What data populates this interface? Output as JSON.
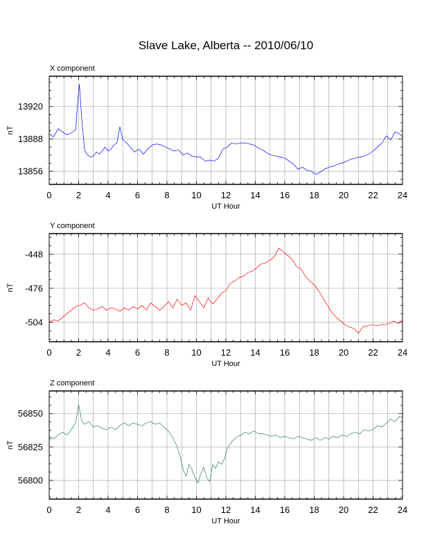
{
  "title": "Slave Lake, Alberta -- 2010/06/10",
  "chart_data": [
    {
      "type": "line",
      "component_label": "X component",
      "xlabel": "UT Hour",
      "ylabel": "nT",
      "color": "#0000ff",
      "xlim": [
        0,
        24
      ],
      "ylim": [
        13843,
        13950
      ],
      "x_ticks": [
        0,
        2,
        4,
        6,
        8,
        10,
        12,
        14,
        16,
        18,
        20,
        22,
        24
      ],
      "y_ticks": [
        13856,
        13888,
        13920
      ],
      "grid": true,
      "series": [
        {
          "x": [
            0,
            0.3,
            0.6,
            0.9,
            1.2,
            1.5,
            1.8,
            1.95,
            2.05,
            2.2,
            2.4,
            2.6,
            2.8,
            3.0,
            3.2,
            3.4,
            3.6,
            3.8,
            4.0,
            4.2,
            4.4,
            4.6,
            4.8,
            5.0,
            5.2,
            5.5,
            5.8,
            6.1,
            6.4,
            6.7,
            7.0,
            7.3,
            7.6,
            7.9,
            8.2,
            8.5,
            8.8,
            9.1,
            9.4,
            9.7,
            10.0,
            10.3,
            10.6,
            10.9,
            11.2,
            11.5,
            11.8,
            12.1,
            12.4,
            12.7,
            13.0,
            13.3,
            13.6,
            13.9,
            14.2,
            14.5,
            14.8,
            15.1,
            15.4,
            15.7,
            16.0,
            16.3,
            16.6,
            16.9,
            17.2,
            17.5,
            17.8,
            18.1,
            18.4,
            18.7,
            19.0,
            19.3,
            19.6,
            19.9,
            20.2,
            20.5,
            20.8,
            21.1,
            21.4,
            21.7,
            22.0,
            22.3,
            22.6,
            22.9,
            23.2,
            23.5,
            23.8,
            24
          ],
          "y": [
            13893,
            13890,
            13898,
            13895,
            13892,
            13894,
            13897,
            13928,
            13942,
            13910,
            13877,
            13872,
            13870,
            13871,
            13875,
            13873,
            13876,
            13880,
            13876,
            13878,
            13882,
            13884,
            13900,
            13887,
            13885,
            13880,
            13875,
            13878,
            13873,
            13878,
            13882,
            13883,
            13882,
            13880,
            13878,
            13876,
            13877,
            13872,
            13874,
            13871,
            13870,
            13870,
            13866,
            13867,
            13866,
            13869,
            13878,
            13880,
            13884,
            13883,
            13884,
            13884,
            13883,
            13882,
            13879,
            13877,
            13874,
            13872,
            13871,
            13870,
            13869,
            13866,
            13863,
            13858,
            13860,
            13857,
            13856,
            13853,
            13855,
            13858,
            13860,
            13861,
            13863,
            13864,
            13866,
            13868,
            13869,
            13870,
            13871,
            13873,
            13876,
            13880,
            13884,
            13891,
            13887,
            13895,
            13893,
            13890
          ]
        }
      ]
    },
    {
      "type": "line",
      "component_label": "Y component",
      "xlabel": "UT Hour",
      "ylabel": "nT",
      "color": "#ff0000",
      "xlim": [
        0,
        24
      ],
      "ylim": [
        -520,
        -431
      ],
      "x_ticks": [
        0,
        2,
        4,
        6,
        8,
        10,
        12,
        14,
        16,
        18,
        20,
        22,
        24
      ],
      "y_ticks": [
        -504,
        -476,
        -448
      ],
      "grid": true,
      "series": [
        {
          "x": [
            0,
            0.3,
            0.6,
            0.9,
            1.2,
            1.5,
            1.8,
            2.1,
            2.4,
            2.7,
            3.0,
            3.3,
            3.6,
            3.9,
            4.2,
            4.5,
            4.8,
            5.1,
            5.4,
            5.7,
            6.0,
            6.3,
            6.6,
            6.9,
            7.2,
            7.5,
            7.8,
            8.1,
            8.4,
            8.7,
            9.0,
            9.3,
            9.6,
            9.9,
            10.2,
            10.5,
            10.8,
            11.1,
            11.4,
            11.7,
            12.0,
            12.3,
            12.6,
            12.9,
            13.2,
            13.5,
            13.8,
            14.1,
            14.4,
            14.7,
            15.0,
            15.3,
            15.6,
            15.9,
            16.2,
            16.5,
            16.8,
            17.1,
            17.4,
            17.7,
            18.0,
            18.3,
            18.6,
            18.9,
            19.2,
            19.5,
            19.8,
            20.1,
            20.4,
            20.7,
            21.0,
            21.3,
            21.6,
            21.9,
            22.2,
            22.5,
            22.8,
            23.1,
            23.4,
            23.7,
            24
          ],
          "y": [
            -504,
            -502,
            -503,
            -500,
            -497,
            -494,
            -491,
            -490,
            -488,
            -492,
            -494,
            -493,
            -491,
            -494,
            -492,
            -493,
            -495,
            -492,
            -494,
            -491,
            -493,
            -490,
            -494,
            -488,
            -491,
            -494,
            -491,
            -487,
            -492,
            -485,
            -490,
            -488,
            -494,
            -482,
            -487,
            -492,
            -484,
            -489,
            -485,
            -480,
            -478,
            -472,
            -470,
            -467,
            -466,
            -463,
            -462,
            -459,
            -456,
            -455,
            -453,
            -450,
            -443,
            -446,
            -449,
            -452,
            -458,
            -460,
            -466,
            -470,
            -473,
            -478,
            -484,
            -490,
            -496,
            -500,
            -503,
            -506,
            -508,
            -509,
            -513,
            -508,
            -507,
            -506,
            -507,
            -506,
            -506,
            -505,
            -503,
            -505,
            -502
          ]
        }
      ]
    },
    {
      "type": "line",
      "component_label": "Z component",
      "xlabel": "UT Hour",
      "ylabel": "nT",
      "color": "#2e7d4f",
      "xlim": [
        0,
        24
      ],
      "ylim": [
        56786,
        56867
      ],
      "x_ticks": [
        0,
        2,
        4,
        6,
        8,
        10,
        12,
        14,
        16,
        18,
        20,
        22,
        24
      ],
      "y_ticks": [
        56800,
        56825,
        56850
      ],
      "grid": true,
      "series": [
        {
          "x": [
            0,
            0.3,
            0.6,
            0.9,
            1.2,
            1.5,
            1.8,
            2.0,
            2.2,
            2.4,
            2.7,
            3.0,
            3.3,
            3.6,
            3.9,
            4.2,
            4.5,
            4.8,
            5.1,
            5.4,
            5.7,
            6.0,
            6.3,
            6.6,
            6.9,
            7.2,
            7.5,
            7.8,
            8.1,
            8.4,
            8.7,
            8.9,
            9.1,
            9.3,
            9.5,
            9.7,
            9.9,
            10.1,
            10.3,
            10.5,
            10.7,
            10.9,
            11.1,
            11.3,
            11.5,
            11.7,
            11.9,
            12.1,
            12.4,
            12.7,
            13.0,
            13.3,
            13.6,
            13.9,
            14.2,
            14.5,
            14.8,
            15.1,
            15.4,
            15.7,
            16.0,
            16.3,
            16.6,
            16.9,
            17.2,
            17.5,
            17.8,
            18.1,
            18.4,
            18.7,
            19.0,
            19.3,
            19.6,
            19.9,
            20.2,
            20.5,
            20.8,
            21.1,
            21.4,
            21.7,
            22.0,
            22.3,
            22.6,
            22.9,
            23.2,
            23.5,
            23.8,
            24
          ],
          "y": [
            56833,
            56831,
            56834,
            56836,
            56834,
            56838,
            56843,
            56857,
            56845,
            56842,
            56844,
            56840,
            56841,
            56839,
            56838,
            56840,
            56838,
            56841,
            56843,
            56841,
            56843,
            56842,
            56841,
            56843,
            56844,
            56842,
            56843,
            56840,
            56837,
            56832,
            56825,
            56818,
            56808,
            56803,
            56812,
            56808,
            56802,
            56798,
            56805,
            56810,
            56802,
            56799,
            56812,
            56809,
            56814,
            56812,
            56816,
            56824,
            56829,
            56832,
            56834,
            56836,
            56835,
            56837,
            56835,
            56835,
            56834,
            56833,
            56834,
            56832,
            56833,
            56832,
            56831,
            56833,
            56832,
            56831,
            56830,
            56832,
            56830,
            56832,
            56831,
            56833,
            56832,
            56834,
            56833,
            56835,
            56836,
            56835,
            56838,
            56837,
            56838,
            56841,
            56840,
            56843,
            56846,
            56844,
            56848,
            56847
          ]
        }
      ]
    }
  ]
}
